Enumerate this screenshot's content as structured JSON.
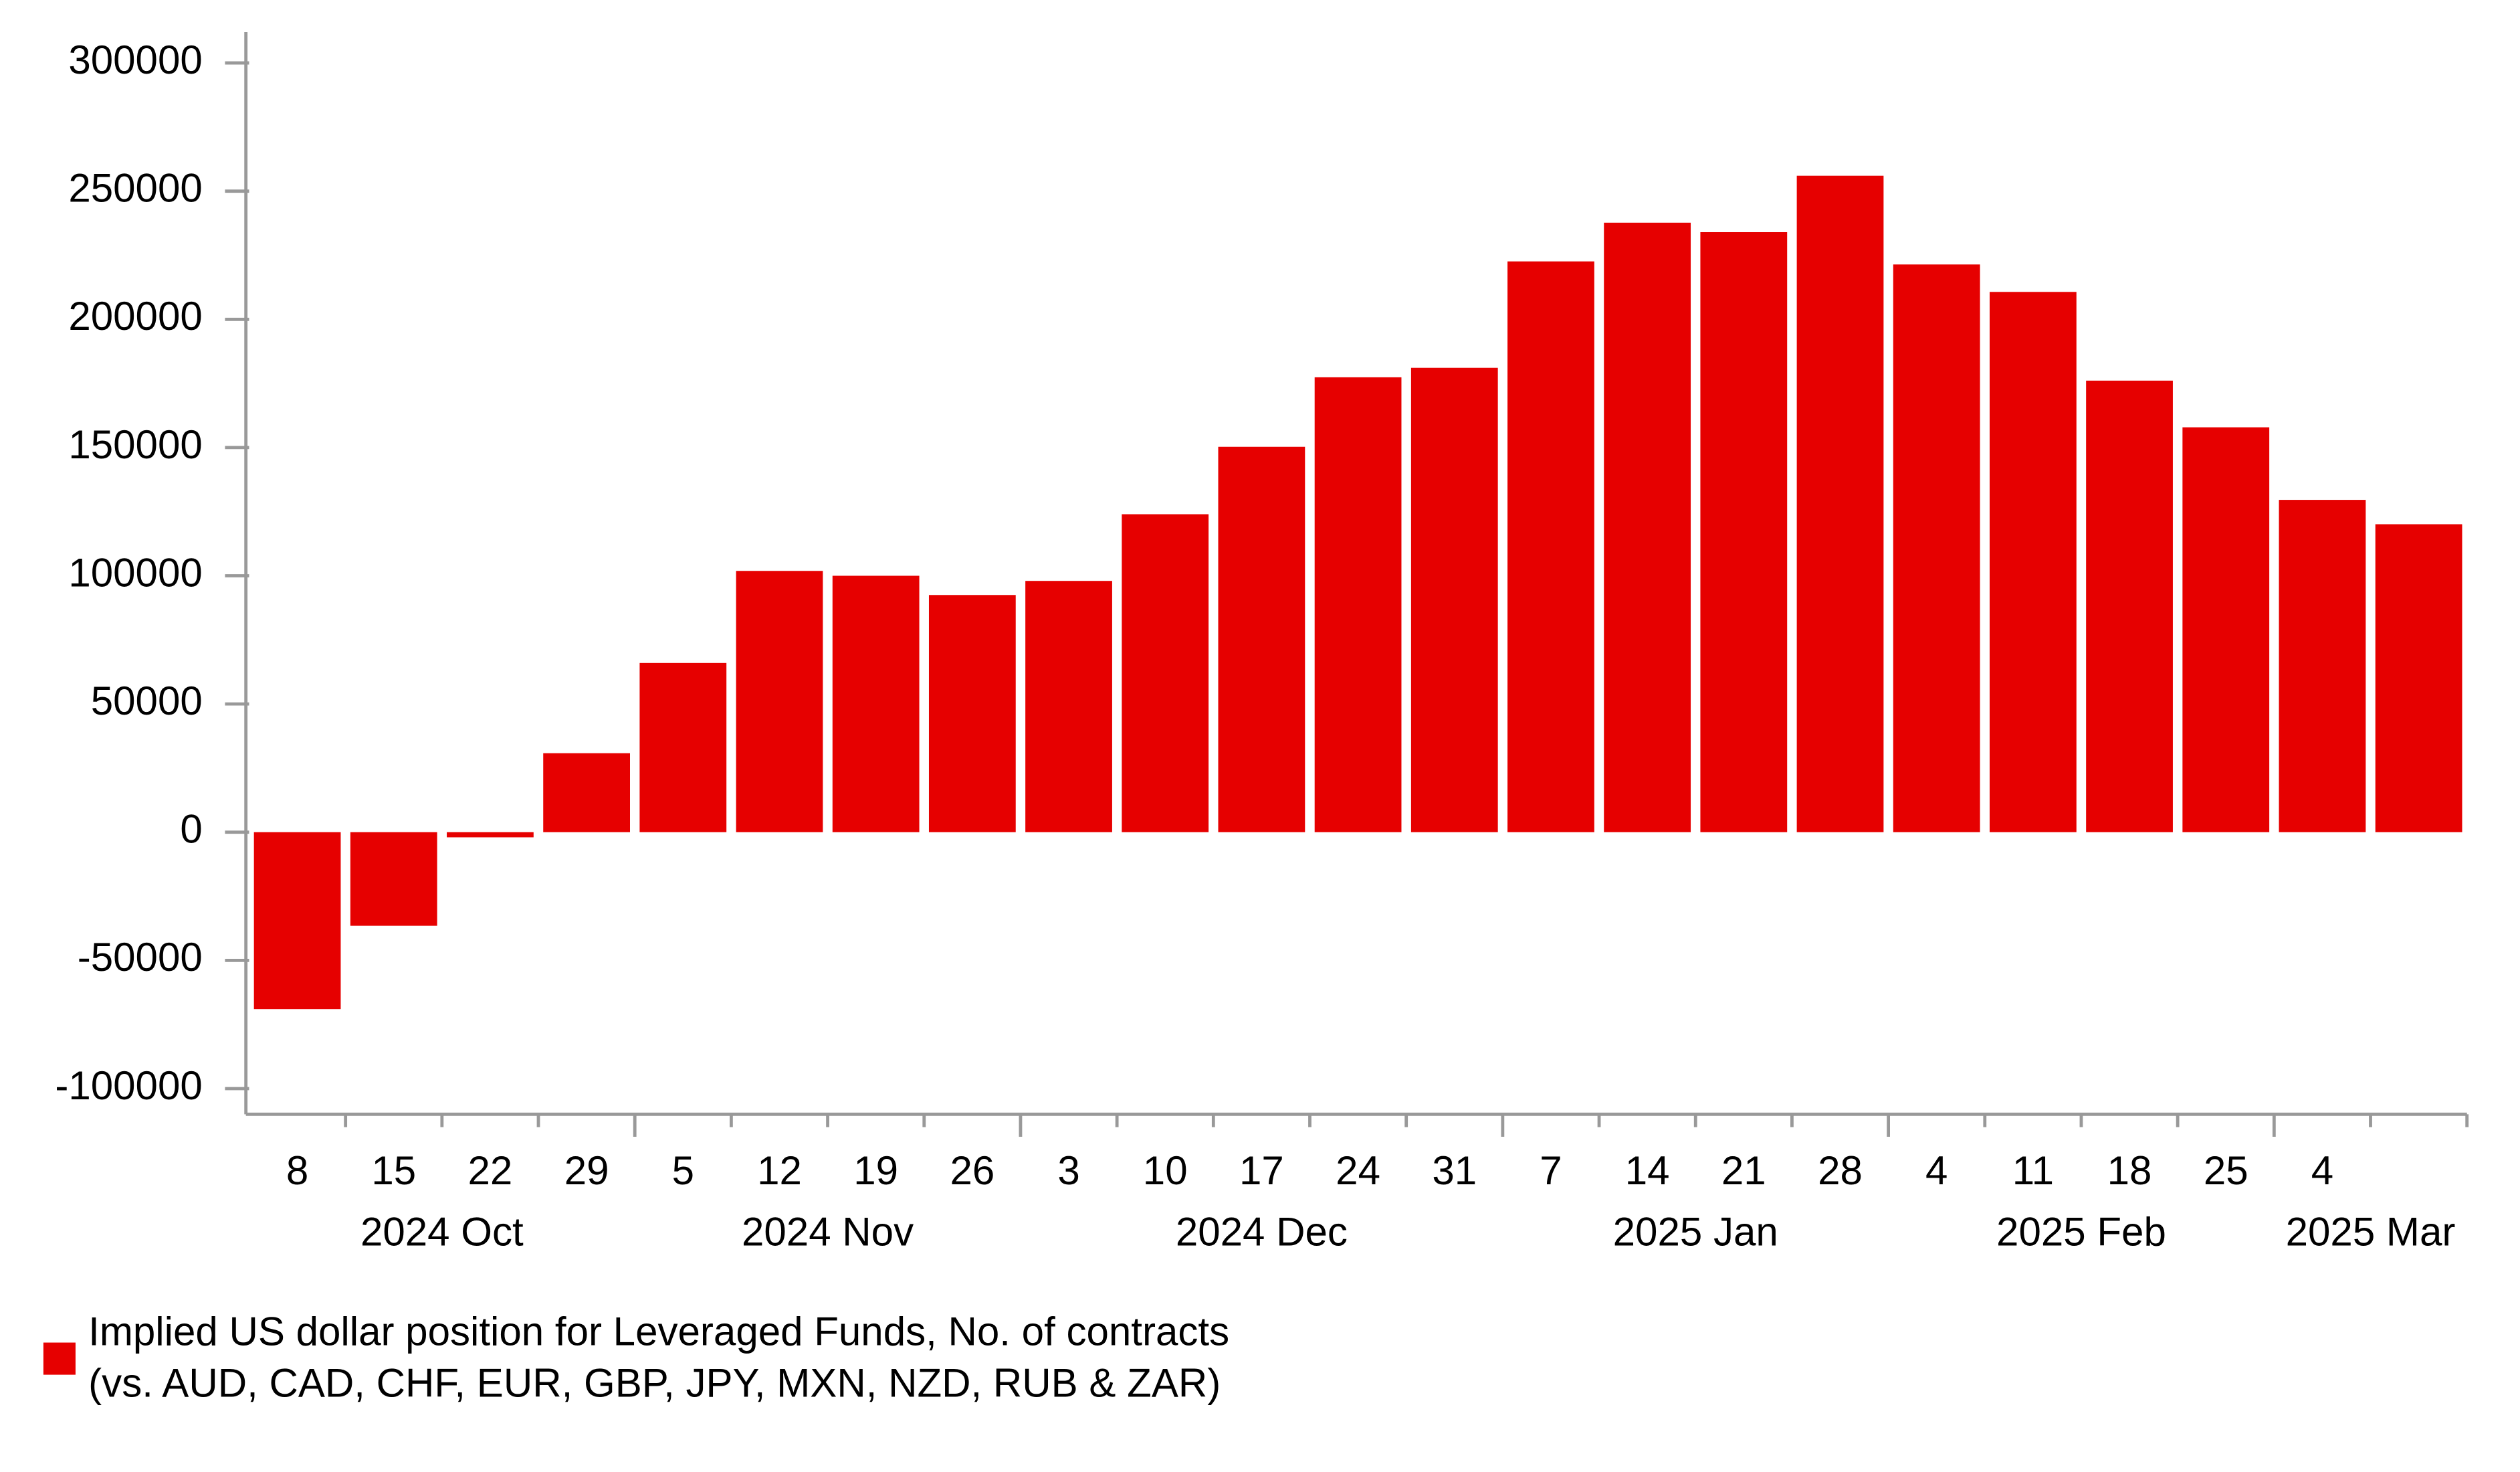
{
  "chart_data": {
    "type": "bar",
    "categories": [
      "8",
      "15",
      "22",
      "29",
      "5",
      "12",
      "19",
      "26",
      "3",
      "10",
      "17",
      "24",
      "31",
      "7",
      "14",
      "21",
      "28",
      "4",
      "11",
      "18",
      "25",
      "4",
      null
    ],
    "groups": [
      {
        "label": "2024 Oct",
        "count": 4
      },
      {
        "label": "2024 Nov",
        "count": 4
      },
      {
        "label": "2024 Dec",
        "count": 5
      },
      {
        "label": "2025 Jan",
        "count": 4
      },
      {
        "label": "2025 Feb",
        "count": 4
      },
      {
        "label": "2025 Mar",
        "count": 2
      }
    ],
    "series": [
      {
        "name": "Implied US dollar position for Leveraged Funds, No. of contracts",
        "subname": "(vs. AUD, CAD, CHF, EUR, GBP, JPY, MXN, NZD, RUB & ZAR)",
        "color": "#e60000",
        "values": [
          -69000,
          -36500,
          -2000,
          30800,
          66000,
          101900,
          100000,
          92500,
          98000,
          124000,
          150300,
          177400,
          181100,
          222600,
          237700,
          234000,
          256000,
          221400,
          210700,
          176100,
          157900,
          129600,
          120100
        ]
      }
    ],
    "ylim": [
      -110000,
      312000
    ],
    "yticks": [
      -100000,
      -50000,
      0,
      50000,
      100000,
      150000,
      200000,
      250000,
      300000
    ],
    "grid": false
  }
}
